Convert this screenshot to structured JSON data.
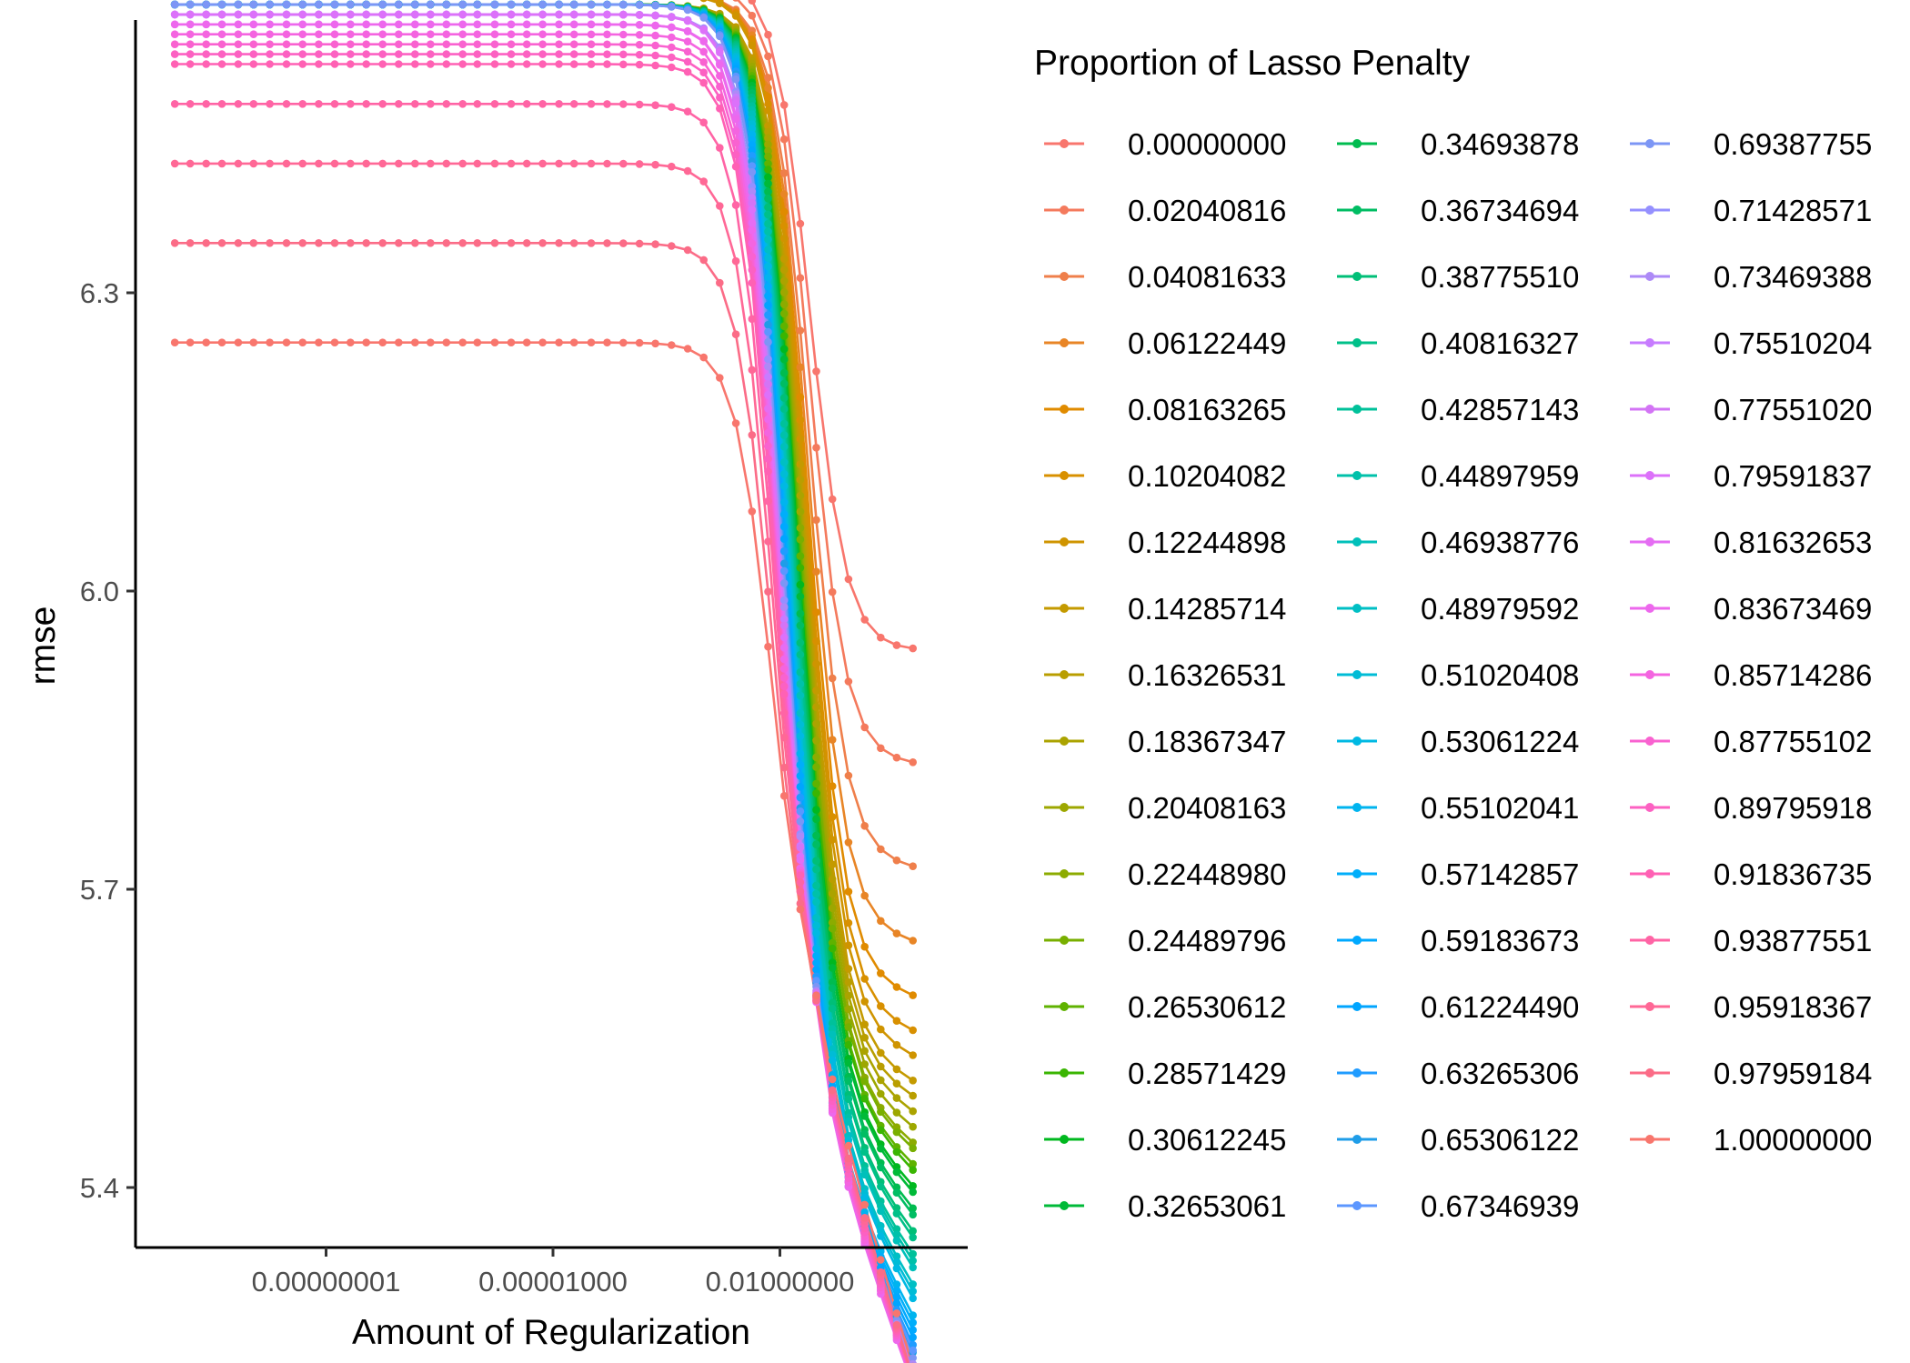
{
  "chart_data": {
    "type": "line",
    "title": "",
    "xlabel": "Amount of Regularization",
    "ylabel": "rmse",
    "x_scale": "log10",
    "x_ticks": [
      1e-08,
      1e-05,
      0.01
    ],
    "x_tick_labels": [
      "0.00000001",
      "0.00001000",
      "0.01000000"
    ],
    "y_ticks": [
      5.4,
      5.7,
      6.0,
      6.3
    ],
    "y_tick_labels": [
      "5.4",
      "5.7",
      "6.0",
      "6.3"
    ],
    "xlim": [
      1e-10,
      1.0
    ],
    "ylim": [
      5.35,
      6.62
    ],
    "grid": false,
    "legend_placement": "right",
    "legend_title": "Proportion of Lasso Penalty",
    "x": [
      1e-10,
      1.6e-10,
      2.6e-10,
      4.2e-10,
      6.9e-10,
      1.1e-09,
      1.8e-09,
      3e-09,
      4.9e-09,
      8e-09,
      1.3e-08,
      2.1e-08,
      3.4e-08,
      5.6e-08,
      9.1e-08,
      1.5e-07,
      2.4e-07,
      3.9e-07,
      6.4e-07,
      1e-06,
      1.7e-06,
      2.8e-06,
      4.5e-06,
      7.3e-06,
      1.2e-05,
      1.9e-05,
      3.2e-05,
      5.2e-05,
      8.5e-05,
      0.000139,
      0.000226,
      0.000369,
      0.000603,
      0.000983,
      0.0016,
      0.00262,
      0.00428,
      0.00698,
      0.0114,
      0.0186,
      0.0303,
      0.0494,
      0.0806,
      0.132,
      0.215,
      0.35,
      0.572
    ],
    "series": [
      {
        "name": "0.00000000",
        "color": "#F8766D",
        "plateau": 6.62,
        "floor": 5.94
      },
      {
        "name": "0.02040816",
        "color": "#F47A5D",
        "plateau": 6.61,
        "floor": 5.83
      },
      {
        "name": "0.04081633",
        "color": "#EF7F4B",
        "plateau": 6.6,
        "floor": 5.73
      },
      {
        "name": "0.06122449",
        "color": "#E88526",
        "plateau": 6.6,
        "floor": 5.66
      },
      {
        "name": "0.08163265",
        "color": "#E08B00",
        "plateau": 6.6,
        "floor": 5.61
      },
      {
        "name": "0.10204082",
        "color": "#D89000",
        "plateau": 6.6,
        "floor": 5.58
      },
      {
        "name": "0.12244898",
        "color": "#CF9400",
        "plateau": 6.6,
        "floor": 5.56
      },
      {
        "name": "0.14285714",
        "color": "#C49A00",
        "plateau": 6.59,
        "floor": 5.54
      },
      {
        "name": "0.16326531",
        "color": "#B99E00",
        "plateau": 6.59,
        "floor": 5.53
      },
      {
        "name": "0.18367347",
        "color": "#ABA300",
        "plateau": 6.59,
        "floor": 5.52
      },
      {
        "name": "0.20408163",
        "color": "#9DA700",
        "plateau": 6.59,
        "floor": 5.51
      },
      {
        "name": "0.22448980",
        "color": "#8CAB00",
        "plateau": 6.59,
        "floor": 5.5
      },
      {
        "name": "0.24489796",
        "color": "#78AF00",
        "plateau": 6.59,
        "floor": 5.5
      },
      {
        "name": "0.26530612",
        "color": "#5FB200",
        "plateau": 6.59,
        "floor": 5.49
      },
      {
        "name": "0.28571429",
        "color": "#3AB502",
        "plateau": 6.59,
        "floor": 5.49
      },
      {
        "name": "0.30612245",
        "color": "#00B81F",
        "plateau": 6.59,
        "floor": 5.48
      },
      {
        "name": "0.32653061",
        "color": "#00BA38",
        "plateau": 6.59,
        "floor": 5.48
      },
      {
        "name": "0.34693878",
        "color": "#00BC4F",
        "plateau": 6.59,
        "floor": 5.47
      },
      {
        "name": "0.36734694",
        "color": "#00BD63",
        "plateau": 6.59,
        "floor": 5.47
      },
      {
        "name": "0.38775510",
        "color": "#00BF77",
        "plateau": 6.59,
        "floor": 5.46
      },
      {
        "name": "0.40816327",
        "color": "#00C089",
        "plateau": 6.59,
        "floor": 5.46
      },
      {
        "name": "0.42857143",
        "color": "#00C19A",
        "plateau": 6.59,
        "floor": 5.45
      },
      {
        "name": "0.44897959",
        "color": "#00C1AA",
        "plateau": 6.59,
        "floor": 5.45
      },
      {
        "name": "0.46938776",
        "color": "#00C0BA",
        "plateau": 6.59,
        "floor": 5.45
      },
      {
        "name": "0.48979592",
        "color": "#00BFC4",
        "plateau": 6.59,
        "floor": 5.44
      },
      {
        "name": "0.51020408",
        "color": "#00BCD6",
        "plateau": 6.59,
        "floor": 5.44
      },
      {
        "name": "0.53061224",
        "color": "#00B9E3",
        "plateau": 6.59,
        "floor": 5.44
      },
      {
        "name": "0.55102041",
        "color": "#00B4EF",
        "plateau": 6.59,
        "floor": 5.43
      },
      {
        "name": "0.57142857",
        "color": "#00AEFA",
        "plateau": 6.59,
        "floor": 5.43
      },
      {
        "name": "0.59183673",
        "color": "#00A9FF",
        "plateau": 6.59,
        "floor": 5.43
      },
      {
        "name": "0.61224490",
        "color": "#00A5FF",
        "plateau": 6.59,
        "floor": 5.43
      },
      {
        "name": "0.63265306",
        "color": "#209CFF",
        "plateau": 6.59,
        "floor": 5.43
      },
      {
        "name": "0.65306122",
        "color": "#1F9DE8",
        "plateau": 6.59,
        "floor": 5.43
      },
      {
        "name": "0.67346939",
        "color": "#5C97FF",
        "plateau": 6.59,
        "floor": 5.44
      },
      {
        "name": "0.69387755",
        "color": "#7C96F5",
        "plateau": 6.59,
        "floor": 5.44
      },
      {
        "name": "0.71428571",
        "color": "#9590FF",
        "plateau": 6.58,
        "floor": 5.44
      },
      {
        "name": "0.73469388",
        "color": "#AD8AF7",
        "plateau": 6.58,
        "floor": 5.45
      },
      {
        "name": "0.75510204",
        "color": "#C77CFF",
        "plateau": 6.58,
        "floor": 5.45
      },
      {
        "name": "0.77551020",
        "color": "#D374F5",
        "plateau": 6.58,
        "floor": 5.46
      },
      {
        "name": "0.79591837",
        "color": "#DC71FA",
        "plateau": 6.58,
        "floor": 5.46
      },
      {
        "name": "0.81632653",
        "color": "#E56DF3",
        "plateau": 6.57,
        "floor": 5.47
      },
      {
        "name": "0.83673469",
        "color": "#ED68ED",
        "plateau": 6.57,
        "floor": 5.47
      },
      {
        "name": "0.85714286",
        "color": "#F464E0",
        "plateau": 6.56,
        "floor": 5.48
      },
      {
        "name": "0.87755102",
        "color": "#F962D0",
        "plateau": 6.55,
        "floor": 5.49
      },
      {
        "name": "0.89795918",
        "color": "#FC61C2",
        "plateau": 6.54,
        "floor": 5.5
      },
      {
        "name": "0.91836735",
        "color": "#FF61B4",
        "plateau": 6.53,
        "floor": 5.51
      },
      {
        "name": "0.93877551",
        "color": "#FF64A5",
        "plateau": 6.49,
        "floor": 5.52
      },
      {
        "name": "0.95918367",
        "color": "#FF6896",
        "plateau": 6.43,
        "floor": 5.53
      },
      {
        "name": "0.97959184",
        "color": "#FB6C87",
        "plateau": 6.35,
        "floor": 5.54
      },
      {
        "name": "1.00000000",
        "color": "#F8766D",
        "plateau": 6.25,
        "floor": 5.56
      }
    ]
  }
}
